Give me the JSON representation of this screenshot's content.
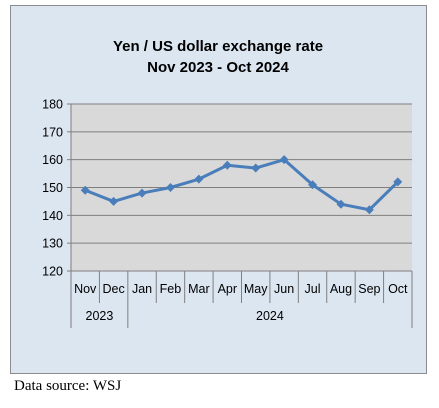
{
  "chart_data": {
    "type": "line",
    "title_lines": [
      "Yen / US dollar exchange rate",
      "Nov 2023  -  Oct 2024"
    ],
    "categories": [
      "Nov",
      "Dec",
      "Jan",
      "Feb",
      "Mar",
      "Apr",
      "May",
      "Jun",
      "Jul",
      "Aug",
      "Sep",
      "Oct"
    ],
    "category_groups": [
      {
        "label": "2023",
        "count": 2
      },
      {
        "label": "2024",
        "count": 10
      }
    ],
    "series": [
      {
        "values": [
          149,
          145,
          148,
          150,
          153,
          158,
          157,
          160,
          151,
          144,
          142,
          152
        ]
      }
    ],
    "ylim": [
      120,
      180
    ],
    "yticks": [
      120,
      130,
      140,
      150,
      160,
      170,
      180
    ],
    "grid": true,
    "colors": {
      "chart_background": "#dce6f1",
      "plot_background": "#d9d9d9",
      "line": "#4a7ebb",
      "gridline": "#7f7f7f"
    }
  },
  "source_note": "Data source: WSJ"
}
